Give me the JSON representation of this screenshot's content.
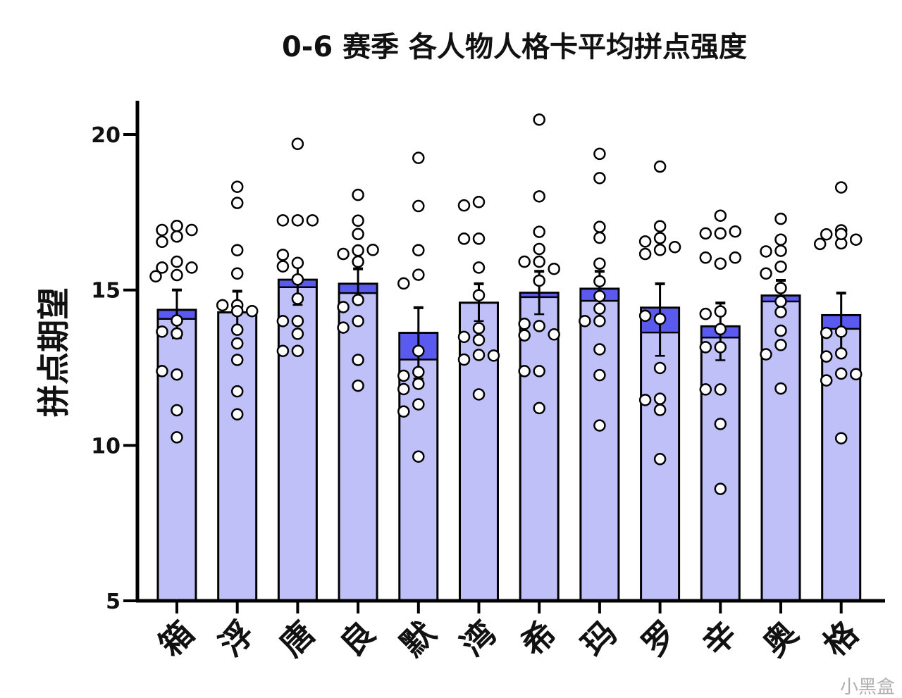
{
  "chart_data": {
    "type": "bar",
    "title": "0-6 赛季 各人物人格卡平均拼点强度",
    "xlabel": "",
    "ylabel": "拼点期望",
    "ylim": [
      5,
      21
    ],
    "yticks": [
      5,
      10,
      15,
      20
    ],
    "grid": false,
    "legend": "none",
    "colors": {
      "bar_fill": "#c0c0f8",
      "bar_band": "#5a5af0",
      "point_fill": "#ffffff",
      "stroke": "#000000"
    },
    "categories": [
      "箱",
      "浮",
      "唐",
      "良",
      "默",
      "湾",
      "希",
      "玛",
      "罗",
      "辛",
      "奥",
      "格"
    ],
    "values": [
      14.36,
      14.28,
      15.33,
      15.2,
      13.62,
      14.59,
      14.91,
      15.04,
      14.43,
      13.83,
      14.82,
      14.19
    ],
    "inner_values": [
      14.07,
      14.28,
      15.09,
      14.9,
      12.76,
      14.59,
      14.77,
      14.65,
      13.63,
      13.47,
      14.63,
      13.75
    ],
    "error_upper": [
      15.0,
      14.96,
      15.91,
      15.68,
      14.43,
      15.2,
      15.6,
      15.6,
      15.2,
      14.58,
      15.31,
      14.9
    ],
    "error_lower": [
      13.45,
      13.62,
      14.52,
      14.72,
      12.15,
      14.0,
      14.22,
      13.97,
      12.88,
      12.74,
      14.25,
      13.08
    ],
    "points": [
      [
        17.06,
        16.93,
        16.93,
        16.72,
        16.55,
        17.06,
        16.72,
        15.91,
        15.72,
        15.72,
        15.48,
        15.44,
        14.02,
        13.6,
        13.66,
        12.28,
        12.39,
        11.13,
        10.26
      ],
      [
        18.32,
        17.8,
        16.28,
        15.53,
        14.51,
        14.51,
        14.32,
        14.32,
        13.72,
        13.28,
        12.75,
        11.74,
        11.0
      ],
      [
        19.7,
        17.24,
        17.24,
        17.24,
        15.87,
        16.13,
        15.76,
        15.34,
        14.72,
        14.0,
        14.0,
        13.59,
        13.04,
        13.04
      ],
      [
        18.06,
        17.23,
        16.8,
        16.27,
        16.16,
        16.29,
        15.91,
        14.68,
        14.45,
        14.0,
        13.79,
        12.75,
        11.92
      ],
      [
        19.25,
        17.7,
        16.28,
        15.49,
        15.21,
        13.04,
        12.36,
        11.98,
        12.24,
        11.81,
        11.32,
        11.09,
        9.64
      ],
      [
        17.83,
        17.72,
        16.65,
        16.65,
        15.72,
        14.83,
        13.77,
        13.39,
        13.49,
        12.91,
        12.76,
        12.89,
        11.64
      ],
      [
        20.48,
        18.01,
        16.87,
        16.32,
        15.91,
        15.91,
        15.68,
        15.3,
        13.84,
        13.91,
        13.54,
        13.57,
        12.39,
        12.39,
        11.2
      ],
      [
        19.38,
        18.6,
        17.03,
        16.68,
        15.85,
        15.28,
        14.8,
        14.4,
        14.0,
        14.0,
        13.09,
        12.26,
        10.64
      ],
      [
        18.97,
        17.05,
        16.67,
        16.29,
        16.56,
        16.16,
        16.38,
        14.07,
        14.17,
        12.49,
        11.5,
        11.46,
        11.14,
        9.56
      ],
      [
        17.39,
        16.82,
        16.82,
        16.88,
        15.85,
        16.04,
        16.04,
        14.31,
        14.23,
        13.74,
        13.16,
        13.16,
        11.8,
        11.8,
        10.69,
        8.6
      ],
      [
        17.29,
        16.62,
        16.26,
        16.24,
        15.75,
        15.53,
        15.06,
        14.63,
        14.29,
        13.69,
        13.23,
        12.93,
        11.83
      ],
      [
        18.3,
        16.92,
        16.79,
        16.62,
        16.5,
        16.8,
        16.48,
        13.66,
        13.62,
        12.96,
        12.86,
        12.31,
        12.09,
        12.29,
        10.23
      ]
    ]
  },
  "watermark": "小黑盒"
}
